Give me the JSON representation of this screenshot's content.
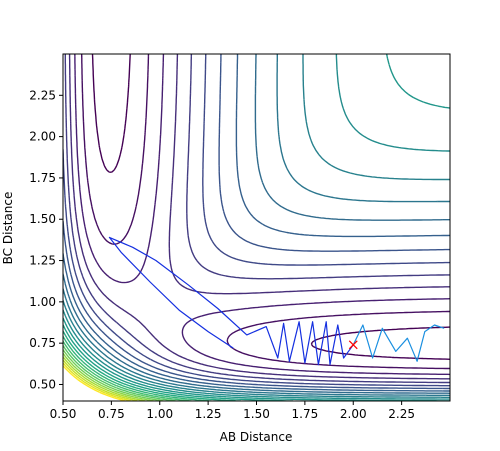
{
  "chart_data": {
    "type": "contour",
    "xlabel": "AB Distance",
    "ylabel": "BC Distance",
    "xlim": [
      0.5,
      2.5
    ],
    "ylim": [
      0.4,
      2.5
    ],
    "xticks": [
      "0.50",
      "0.75",
      "1.00",
      "1.25",
      "1.50",
      "1.75",
      "2.00",
      "2.25"
    ],
    "yticks": [
      "0.50",
      "0.75",
      "1.00",
      "1.25",
      "1.50",
      "1.75",
      "2.00",
      "2.25"
    ],
    "xtick_values": [
      0.5,
      0.75,
      1.0,
      1.25,
      1.5,
      1.75,
      2.0,
      2.25
    ],
    "ytick_values": [
      0.5,
      0.75,
      1.0,
      1.25,
      1.5,
      1.75,
      2.0,
      2.25
    ],
    "colormap": "viridis",
    "contour_level_count": 24,
    "contour_potential": "LEPS-like H+H2 surface (estimated)",
    "marker": {
      "x": 2.0,
      "y": 0.74,
      "symbol": "x",
      "color": "#ff0000"
    },
    "trajectories": [
      {
        "color": "#1530e0",
        "points": [
          [
            2.0,
            0.74
          ],
          [
            1.95,
            0.66
          ],
          [
            1.92,
            0.86
          ],
          [
            1.88,
            0.62
          ],
          [
            1.86,
            0.88
          ],
          [
            1.82,
            0.62
          ],
          [
            1.79,
            0.88
          ],
          [
            1.75,
            0.63
          ],
          [
            1.72,
            0.88
          ],
          [
            1.67,
            0.64
          ],
          [
            1.64,
            0.87
          ],
          [
            1.61,
            0.66
          ],
          [
            1.55,
            0.85
          ],
          [
            1.45,
            0.8
          ],
          [
            1.3,
            0.96
          ],
          [
            1.15,
            1.1
          ],
          [
            0.98,
            1.25
          ],
          [
            0.86,
            1.33
          ],
          [
            0.74,
            1.39
          ],
          [
            0.8,
            1.3
          ],
          [
            0.95,
            1.12
          ],
          [
            1.1,
            0.95
          ],
          [
            1.25,
            0.82
          ],
          [
            1.38,
            0.72
          ]
        ]
      },
      {
        "color": "#1a8fe0",
        "points": [
          [
            2.0,
            0.74
          ],
          [
            2.05,
            0.86
          ],
          [
            2.1,
            0.66
          ],
          [
            2.15,
            0.84
          ],
          [
            2.22,
            0.7
          ],
          [
            2.28,
            0.78
          ],
          [
            2.33,
            0.64
          ],
          [
            2.37,
            0.82
          ],
          [
            2.42,
            0.86
          ],
          [
            2.47,
            0.84
          ]
        ]
      }
    ]
  }
}
